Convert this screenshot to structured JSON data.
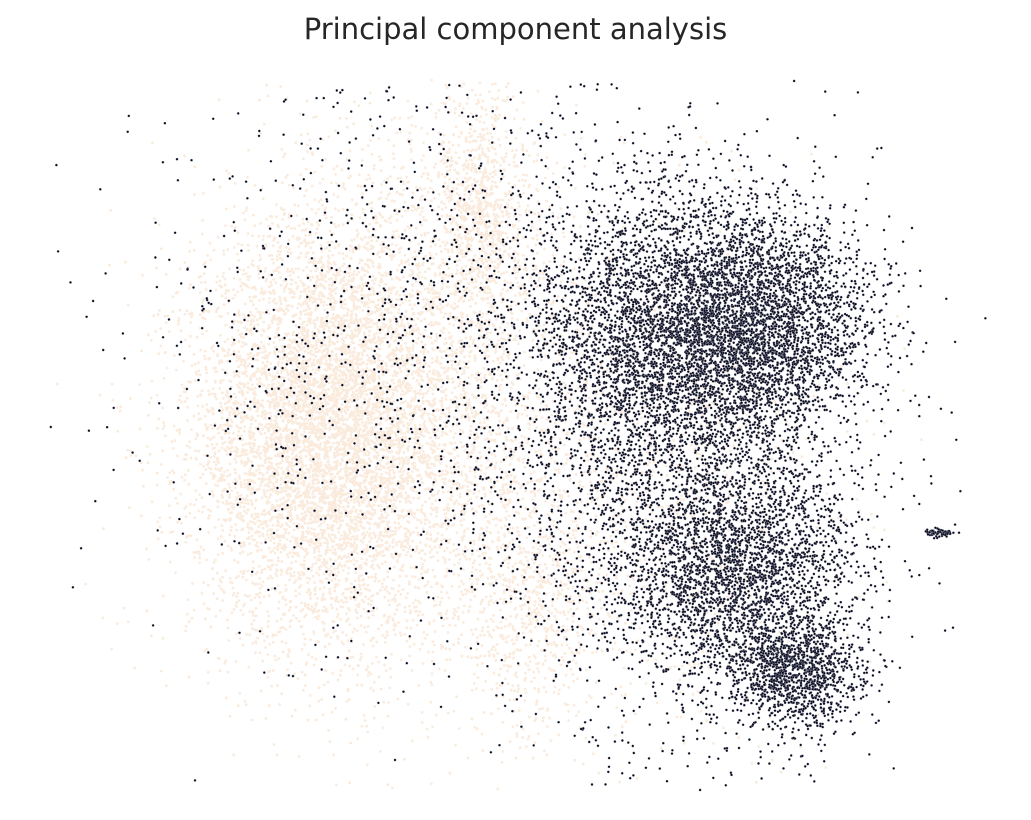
{
  "chart_data": {
    "type": "scatter",
    "title": "Principal component analysis",
    "xlabel": "",
    "ylabel": "",
    "axes_visible": false,
    "grid": false,
    "legend": "none",
    "xlim": [
      -4,
      10
    ],
    "ylim": [
      -6,
      6
    ],
    "colors": {
      "light": "#faebdd",
      "dark": "#03051a",
      "edge": "#ffffff"
    },
    "series": [
      {
        "color_key": "light",
        "clusters": [
          {
            "cx": 0.0,
            "cy": 0.0,
            "sx": 1.0,
            "sy": 1.8,
            "n": 6000
          },
          {
            "cx": 1.5,
            "cy": 0.5,
            "sx": 1.5,
            "sy": 2.4,
            "n": 3000
          },
          {
            "cx": 2.4,
            "cy": 3.8,
            "sx": 0.35,
            "sy": 1.2,
            "n": 900
          },
          {
            "cx": 3.2,
            "cy": -3.0,
            "sx": 0.6,
            "sy": 1.2,
            "n": 700
          },
          {
            "cx": 5.5,
            "cy": -1.0,
            "sx": 1.2,
            "sy": 2.2,
            "n": 800
          }
        ]
      },
      {
        "color_key": "dark",
        "clusters": [
          {
            "cx": 6.6,
            "cy": 1.9,
            "sx": 0.9,
            "sy": 1.0,
            "n": 3500
          },
          {
            "cx": 5.0,
            "cy": 1.5,
            "sx": 1.0,
            "sy": 1.4,
            "n": 3000
          },
          {
            "cx": 6.3,
            "cy": -2.4,
            "sx": 0.9,
            "sy": 0.9,
            "n": 2500
          },
          {
            "cx": 7.2,
            "cy": -4.2,
            "sx": 0.5,
            "sy": 0.5,
            "n": 1200
          },
          {
            "cx": 5.5,
            "cy": -1.0,
            "sx": 1.4,
            "sy": 2.6,
            "n": 2000
          },
          {
            "cx": 2.0,
            "cy": 1.5,
            "sx": 2.2,
            "sy": 2.6,
            "n": 1500
          },
          {
            "cx": 9.4,
            "cy": -1.75,
            "sx": 0.12,
            "sy": 0.04,
            "n": 60
          }
        ]
      }
    ]
  }
}
